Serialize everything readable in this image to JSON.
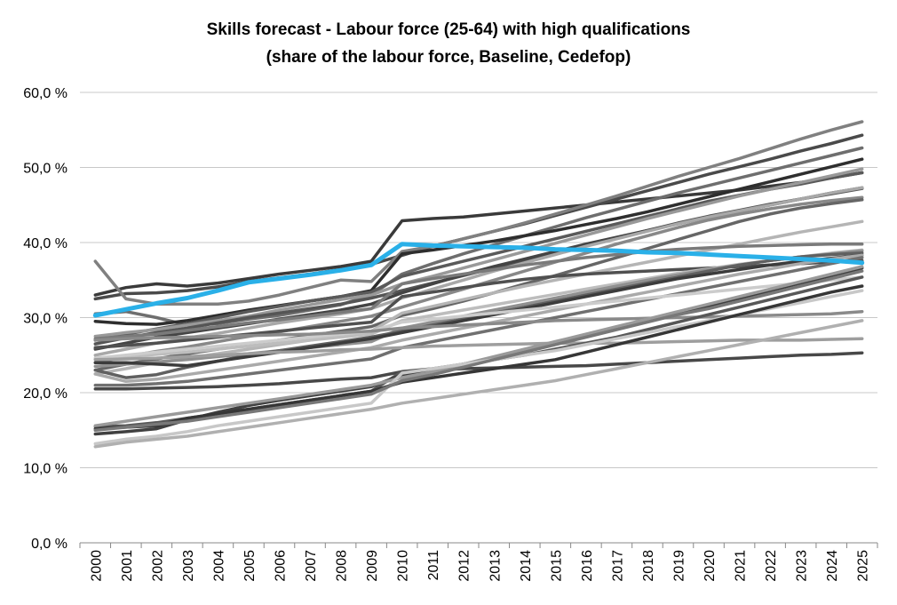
{
  "chart_data": {
    "type": "line",
    "title": "Skills forecast - Labour force (25-64) with high qualifications",
    "subtitle": "(share of the labour force, Baseline, Cedefop)",
    "xlabel": "",
    "ylabel": "",
    "ylim": [
      0,
      60
    ],
    "yticks": [
      "0,0 %",
      "10,0 %",
      "20,0 %",
      "30,0 %",
      "40,0 %",
      "50,0 %",
      "60,0 %"
    ],
    "ytick_values": [
      0,
      10,
      20,
      30,
      40,
      50,
      60
    ],
    "grid": true,
    "legend": "none",
    "highlight_color": "#2ab0e8",
    "categories": [
      "2000",
      "2001",
      "2002",
      "2003",
      "2004",
      "2005",
      "2006",
      "2007",
      "2008",
      "2009",
      "2010",
      "2011",
      "2012",
      "2013",
      "2014",
      "2015",
      "2016",
      "2017",
      "2018",
      "2019",
      "2020",
      "2021",
      "2022",
      "2023",
      "2024",
      "2025"
    ],
    "highlight": {
      "values": [
        30.3,
        31.1,
        31.9,
        32.6,
        33.6,
        34.7,
        35.2,
        35.7,
        36.3,
        37.0,
        39.8,
        39.6,
        39.5,
        39.4,
        39.3,
        39.1,
        39.0,
        38.9,
        38.7,
        38.6,
        38.4,
        38.2,
        38.0,
        37.8,
        37.6,
        37.3
      ]
    },
    "series": [
      {
        "color": "#3a3a3a",
        "values": [
          33.0,
          34.0,
          34.5,
          34.2,
          34.6,
          35.2,
          35.8,
          36.3,
          36.8,
          37.5,
          42.9,
          43.2,
          43.4,
          43.8,
          44.2,
          44.6,
          45.0,
          45.4,
          45.8,
          46.2,
          46.6,
          47.0,
          47.5,
          48.0,
          48.6,
          49.3
        ]
      },
      {
        "color": "#4a4a4a",
        "values": [
          32.5,
          33.2,
          33.3,
          33.6,
          34.1,
          34.8,
          35.3,
          35.8,
          36.4,
          37.1,
          38.3,
          39.5,
          40.5,
          41.5,
          42.5,
          43.6,
          44.7,
          45.8,
          46.9,
          48.0,
          49.1,
          50.1,
          51.1,
          52.2,
          53.2,
          54.3
        ]
      },
      {
        "color": "#808080",
        "values": [
          37.5,
          32.5,
          31.8,
          31.8,
          31.8,
          32.2,
          33.0,
          34.0,
          35.0,
          34.8,
          38.8,
          39.5,
          40.5,
          41.5,
          42.6,
          43.8,
          45.0,
          46.2,
          47.5,
          48.8,
          50.0,
          51.2,
          52.5,
          53.8,
          55.0,
          56.1
        ]
      },
      {
        "color": "#6e6e6e",
        "values": [
          30.5,
          30.8,
          30.0,
          29.0,
          29.2,
          29.8,
          30.3,
          31.0,
          31.7,
          33.0,
          35.8,
          37.2,
          38.5,
          39.7,
          40.9,
          42.1,
          43.3,
          44.4,
          45.5,
          46.6,
          47.6,
          48.6,
          49.6,
          50.6,
          51.6,
          52.6
        ]
      },
      {
        "color": "#2e2e2e",
        "values": [
          29.5,
          29.2,
          29.1,
          29.6,
          30.3,
          31.0,
          31.6,
          32.2,
          32.8,
          33.6,
          38.5,
          39.0,
          39.6,
          40.2,
          40.9,
          41.6,
          42.4,
          43.2,
          44.1,
          45.1,
          46.1,
          47.1,
          48.1,
          49.1,
          50.1,
          51.1
        ]
      },
      {
        "color": "#5a5a5a",
        "values": [
          27.0,
          27.8,
          28.5,
          29.2,
          30.0,
          30.8,
          31.5,
          32.2,
          32.8,
          33.4,
          35.5,
          36.5,
          37.5,
          38.5,
          39.5,
          40.5,
          41.5,
          42.5,
          43.5,
          44.5,
          45.5,
          46.3,
          47.1,
          47.8,
          48.6,
          49.3
        ]
      },
      {
        "color": "#999999",
        "values": [
          27.5,
          28.0,
          28.4,
          29.0,
          29.6,
          30.2,
          31.0,
          31.7,
          32.4,
          33.0,
          34.5,
          35.5,
          36.6,
          37.7,
          38.8,
          39.9,
          41.0,
          42.1,
          43.2,
          44.2,
          45.2,
          46.2,
          47.1,
          48.0,
          48.9,
          49.8
        ]
      },
      {
        "color": "#555555",
        "values": [
          26.5,
          27.3,
          28.0,
          28.6,
          29.3,
          30.0,
          30.6,
          31.2,
          31.8,
          32.6,
          33.6,
          34.6,
          35.6,
          36.6,
          37.6,
          38.6,
          39.6,
          40.6,
          41.6,
          42.6,
          43.5,
          44.3,
          45.1,
          45.8,
          46.5,
          47.2
        ]
      },
      {
        "color": "#444444",
        "values": [
          25.8,
          26.6,
          27.4,
          28.0,
          28.6,
          29.2,
          29.8,
          30.4,
          31.0,
          31.8,
          33.3,
          34.5,
          35.7,
          36.8,
          37.8,
          38.8,
          39.8,
          40.7,
          41.6,
          42.5,
          43.4,
          44.2,
          45.0,
          45.8,
          46.6,
          47.3
        ]
      },
      {
        "color": "#a8a8a8",
        "values": [
          25.0,
          25.8,
          26.6,
          27.3,
          27.9,
          28.6,
          29.3,
          29.9,
          30.5,
          31.2,
          32.6,
          33.8,
          35.0,
          36.2,
          37.3,
          38.4,
          39.5,
          40.5,
          41.5,
          42.5,
          43.4,
          44.2,
          45.0,
          45.8,
          46.6,
          47.3
        ]
      },
      {
        "color": "#888888",
        "values": [
          24.0,
          24.8,
          25.5,
          26.1,
          26.8,
          27.5,
          28.1,
          28.8,
          29.5,
          30.2,
          31.4,
          32.6,
          33.8,
          35.0,
          36.2,
          37.4,
          38.6,
          39.8,
          40.9,
          42.0,
          43.0,
          43.8,
          44.5,
          45.1,
          45.6,
          46.0
        ]
      },
      {
        "color": "#666666",
        "values": [
          23.0,
          23.8,
          24.5,
          25.2,
          25.8,
          26.4,
          27.0,
          27.6,
          28.2,
          28.8,
          30.3,
          31.2,
          32.2,
          33.3,
          34.5,
          35.6,
          36.8,
          38.0,
          39.2,
          40.4,
          41.6,
          42.8,
          43.8,
          44.6,
          45.2,
          45.7
        ]
      },
      {
        "color": "#b5b5b5",
        "values": [
          22.5,
          23.2,
          24.0,
          24.6,
          25.2,
          25.8,
          26.4,
          27.0,
          27.6,
          28.2,
          30.6,
          31.5,
          32.4,
          33.3,
          34.2,
          35.0,
          35.8,
          36.6,
          37.4,
          38.2,
          39.0,
          39.8,
          40.6,
          41.4,
          42.1,
          42.8
        ]
      },
      {
        "color": "#7a7a7a",
        "values": [
          27.2,
          27.5,
          27.8,
          28.3,
          28.8,
          29.3,
          29.7,
          30.2,
          30.7,
          31.2,
          34.5,
          35.2,
          35.8,
          36.4,
          37.0,
          37.5,
          38.0,
          38.4,
          38.8,
          39.1,
          39.3,
          39.5,
          39.6,
          39.7,
          39.8,
          39.8
        ]
      },
      {
        "color": "#505050",
        "values": [
          26.0,
          26.3,
          26.6,
          27.0,
          27.4,
          27.8,
          28.2,
          28.6,
          29.0,
          29.4,
          32.8,
          33.4,
          34.0,
          34.6,
          35.1,
          35.5,
          35.8,
          36.0,
          36.2,
          36.4,
          36.6,
          36.8,
          37.0,
          37.2,
          37.4,
          37.6
        ]
      },
      {
        "color": "#bdbdbd",
        "values": [
          24.5,
          24.8,
          25.1,
          25.4,
          25.8,
          26.2,
          26.6,
          27.0,
          27.4,
          27.8,
          29.6,
          30.3,
          31.0,
          31.7,
          32.4,
          33.1,
          33.8,
          34.5,
          35.2,
          35.9,
          36.5,
          37.1,
          37.6,
          38.1,
          38.6,
          39.0
        ]
      },
      {
        "color": "#909090",
        "values": [
          23.5,
          23.8,
          24.1,
          24.4,
          24.8,
          25.2,
          25.6,
          26.0,
          26.4,
          26.8,
          28.6,
          29.4,
          30.2,
          31.0,
          31.8,
          32.6,
          33.4,
          34.2,
          35.0,
          35.7,
          36.4,
          37.0,
          37.6,
          38.1,
          38.5,
          38.9
        ]
      },
      {
        "color": "#606060",
        "values": [
          23.0,
          22.0,
          22.4,
          23.4,
          24.2,
          25.0,
          25.6,
          26.2,
          26.8,
          27.4,
          28.2,
          29.0,
          29.8,
          30.6,
          31.4,
          32.2,
          33.0,
          33.8,
          34.6,
          35.4,
          36.2,
          37.0,
          37.6,
          38.1,
          38.4,
          38.6
        ]
      },
      {
        "color": "#3c3c3c",
        "values": [
          24.0,
          24.0,
          23.8,
          23.6,
          24.2,
          24.8,
          25.4,
          26.0,
          26.6,
          27.2,
          28.0,
          28.8,
          29.6,
          30.4,
          31.2,
          32.0,
          32.8,
          33.6,
          34.4,
          35.2,
          35.8,
          36.4,
          37.0,
          37.5,
          37.9,
          38.3
        ]
      },
      {
        "color": "#aaaaaa",
        "values": [
          22.5,
          21.5,
          21.8,
          22.4,
          23.0,
          23.6,
          24.2,
          24.8,
          25.4,
          26.0,
          27.0,
          27.8,
          28.6,
          29.4,
          30.2,
          31.0,
          31.8,
          32.6,
          33.4,
          34.2,
          35.0,
          35.8,
          36.5,
          37.2,
          37.8,
          38.3
        ]
      },
      {
        "color": "#707070",
        "values": [
          21.0,
          21.0,
          21.2,
          21.5,
          22.0,
          22.5,
          23.0,
          23.5,
          24.0,
          24.5,
          26.0,
          26.8,
          27.6,
          28.4,
          29.2,
          30.0,
          30.8,
          31.6,
          32.4,
          33.2,
          34.0,
          34.8,
          35.6,
          36.4,
          37.2,
          38.0
        ]
      },
      {
        "color": "#cccccc",
        "values": [
          24.6,
          25.0,
          25.4,
          25.8,
          26.2,
          26.6,
          27.0,
          27.4,
          27.8,
          28.2,
          29.4,
          29.8,
          30.2,
          30.6,
          31.0,
          31.4,
          31.8,
          32.2,
          32.6,
          33.0,
          33.4,
          33.8,
          34.2,
          34.6,
          35.0,
          35.4
        ]
      },
      {
        "color": "#8a8a8a",
        "values": [
          27.0,
          27.2,
          27.3,
          27.4,
          27.5,
          27.6,
          27.7,
          27.8,
          28.0,
          28.2,
          28.6,
          28.8,
          29.0,
          29.2,
          29.4,
          29.6,
          29.7,
          29.8,
          29.9,
          30.0,
          30.1,
          30.2,
          30.3,
          30.4,
          30.5,
          30.8
        ]
      },
      {
        "color": "#9e9e9e",
        "values": [
          24.4,
          24.5,
          24.6,
          24.8,
          25.0,
          25.2,
          25.4,
          25.5,
          25.7,
          25.8,
          26.0,
          26.2,
          26.3,
          26.4,
          26.5,
          26.6,
          26.6,
          26.6,
          26.7,
          26.8,
          26.9,
          27.0,
          27.0,
          27.0,
          27.1,
          27.2
        ]
      },
      {
        "color": "#484848",
        "values": [
          20.5,
          20.5,
          20.6,
          20.7,
          20.8,
          21.0,
          21.2,
          21.5,
          21.8,
          22.0,
          22.8,
          23.0,
          23.2,
          23.3,
          23.4,
          23.5,
          23.6,
          23.8,
          24.0,
          24.2,
          24.4,
          24.6,
          24.8,
          25.0,
          25.1,
          25.3
        ]
      },
      {
        "color": "#585858",
        "values": [
          15.5,
          15.6,
          16.0,
          16.6,
          17.2,
          17.8,
          18.4,
          19.0,
          19.6,
          20.2,
          22.8,
          23.2,
          23.8,
          24.4,
          25.0,
          25.8,
          26.6,
          27.4,
          28.4,
          29.4,
          30.4,
          31.4,
          32.4,
          33.4,
          34.4,
          35.4
        ]
      },
      {
        "color": "#404040",
        "values": [
          14.5,
          14.8,
          15.2,
          16.4,
          17.4,
          18.3,
          19.0,
          19.6,
          20.2,
          20.8,
          22.4,
          23.0,
          23.8,
          24.6,
          25.6,
          26.6,
          27.6,
          28.6,
          29.6,
          30.6,
          31.6,
          32.6,
          33.6,
          34.6,
          35.6,
          36.6
        ]
      },
      {
        "color": "#9a9a9a",
        "values": [
          15.6,
          16.2,
          16.8,
          17.4,
          18.0,
          18.6,
          19.2,
          19.8,
          20.4,
          21.0,
          22.0,
          22.8,
          23.8,
          24.8,
          25.8,
          26.8,
          27.8,
          28.8,
          29.8,
          30.8,
          31.8,
          32.8,
          33.8,
          34.8,
          35.8,
          36.8
        ]
      },
      {
        "color": "#c8c8c8",
        "values": [
          13.2,
          13.8,
          14.2,
          14.8,
          15.6,
          16.2,
          16.8,
          17.4,
          18.0,
          18.6,
          22.6,
          23.2,
          23.8,
          24.4,
          25.0,
          25.6,
          26.4,
          27.2,
          28.0,
          28.8,
          29.6,
          30.4,
          31.2,
          32.0,
          32.8,
          33.6
        ]
      },
      {
        "color": "#b0b0b0",
        "values": [
          12.8,
          13.4,
          13.8,
          14.2,
          14.8,
          15.4,
          16.0,
          16.6,
          17.2,
          17.8,
          18.6,
          19.2,
          19.8,
          20.4,
          21.0,
          21.6,
          22.4,
          23.2,
          24.0,
          24.8,
          25.6,
          26.4,
          27.2,
          28.0,
          28.8,
          29.6
        ]
      },
      {
        "color": "#363636",
        "values": [
          15.2,
          15.4,
          15.6,
          16.6,
          17.2,
          17.8,
          18.4,
          19.0,
          19.6,
          20.2,
          21.4,
          22.0,
          22.6,
          23.2,
          23.8,
          24.4,
          25.4,
          26.4,
          27.4,
          28.4,
          29.4,
          30.4,
          31.4,
          32.4,
          33.4,
          34.2
        ]
      },
      {
        "color": "#787878",
        "values": [
          15.0,
          15.4,
          15.8,
          16.2,
          16.8,
          17.4,
          18.0,
          18.6,
          19.2,
          19.8,
          21.6,
          22.4,
          23.4,
          24.4,
          25.4,
          26.4,
          27.4,
          28.4,
          29.4,
          30.4,
          31.2,
          32.2,
          33.2,
          34.2,
          35.2,
          36.2
        ]
      }
    ]
  }
}
